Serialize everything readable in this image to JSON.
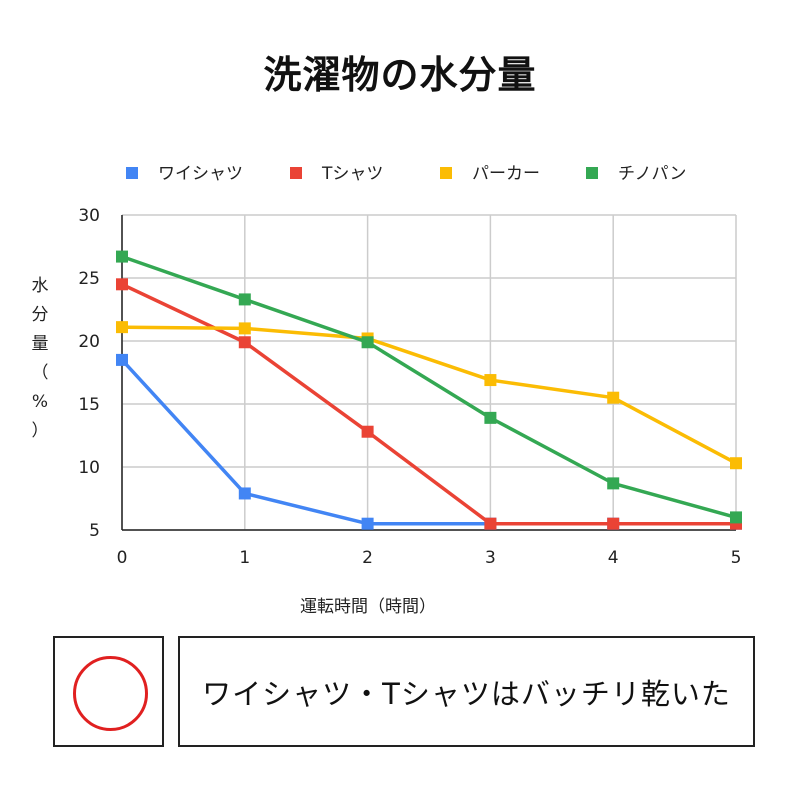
{
  "chart_data": {
    "type": "line",
    "title": "洗濯物の水分量",
    "xlabel": "運転時間（時間）",
    "ylabel": "水分量（%）",
    "x": [
      0,
      1,
      2,
      3,
      4,
      5
    ],
    "ylim": [
      5,
      30
    ],
    "yticks": [
      5,
      10,
      15,
      20,
      25,
      30
    ],
    "legend_position": "top",
    "grid": true,
    "series": [
      {
        "name": "ワイシャツ",
        "color": "#4285f4",
        "values": [
          18.5,
          7.9,
          5.5,
          5.5,
          5.5,
          5.5
        ]
      },
      {
        "name": "Tシャツ",
        "color": "#ea4335",
        "values": [
          24.5,
          19.9,
          12.8,
          5.5,
          5.5,
          5.5
        ]
      },
      {
        "name": "パーカー",
        "color": "#fbbc04",
        "values": [
          21.1,
          21.0,
          20.2,
          16.9,
          15.5,
          10.3
        ]
      },
      {
        "name": "チノパン",
        "color": "#34a853",
        "values": [
          26.7,
          23.3,
          19.9,
          13.9,
          8.7,
          6.0
        ]
      }
    ]
  },
  "verdict": {
    "mark": "circle",
    "mark_color": "#e02020",
    "text": "ワイシャツ・Tシャツはバッチリ乾いた"
  }
}
